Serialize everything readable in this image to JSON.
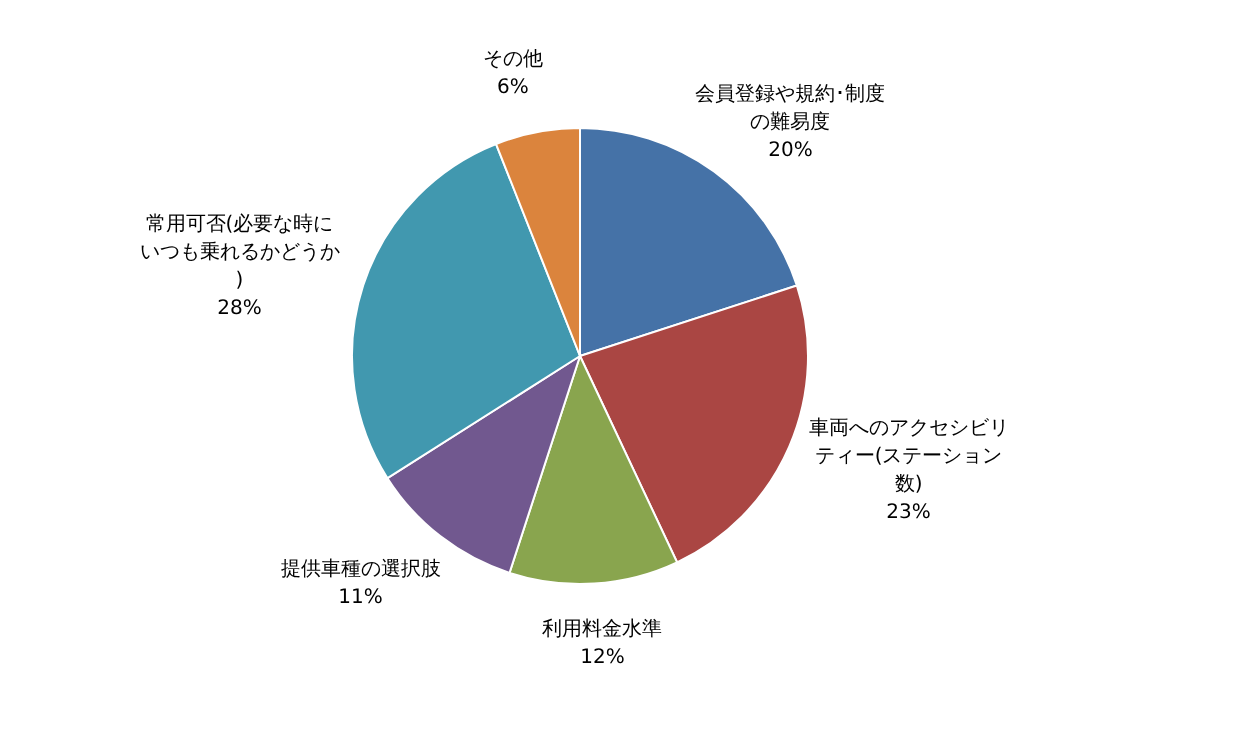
{
  "chart_data": {
    "type": "pie",
    "categories": [
      "会員登録や規約･制度の難易度",
      "車両へのアクセシビリティー(ステーション数)",
      "利用料金水準",
      "提供車種の選択肢",
      "常用可否(必要な時にいつも乗れるかどうか)",
      "その他"
    ],
    "values": [
      20,
      23,
      12,
      11,
      28,
      6
    ],
    "colors": [
      "#4572a7",
      "#aa4643",
      "#89a54e",
      "#71588f",
      "#4198af",
      "#db843d"
    ],
    "value_labels": [
      "20%",
      "23%",
      "12%",
      "11%",
      "28%",
      "6%"
    ]
  }
}
